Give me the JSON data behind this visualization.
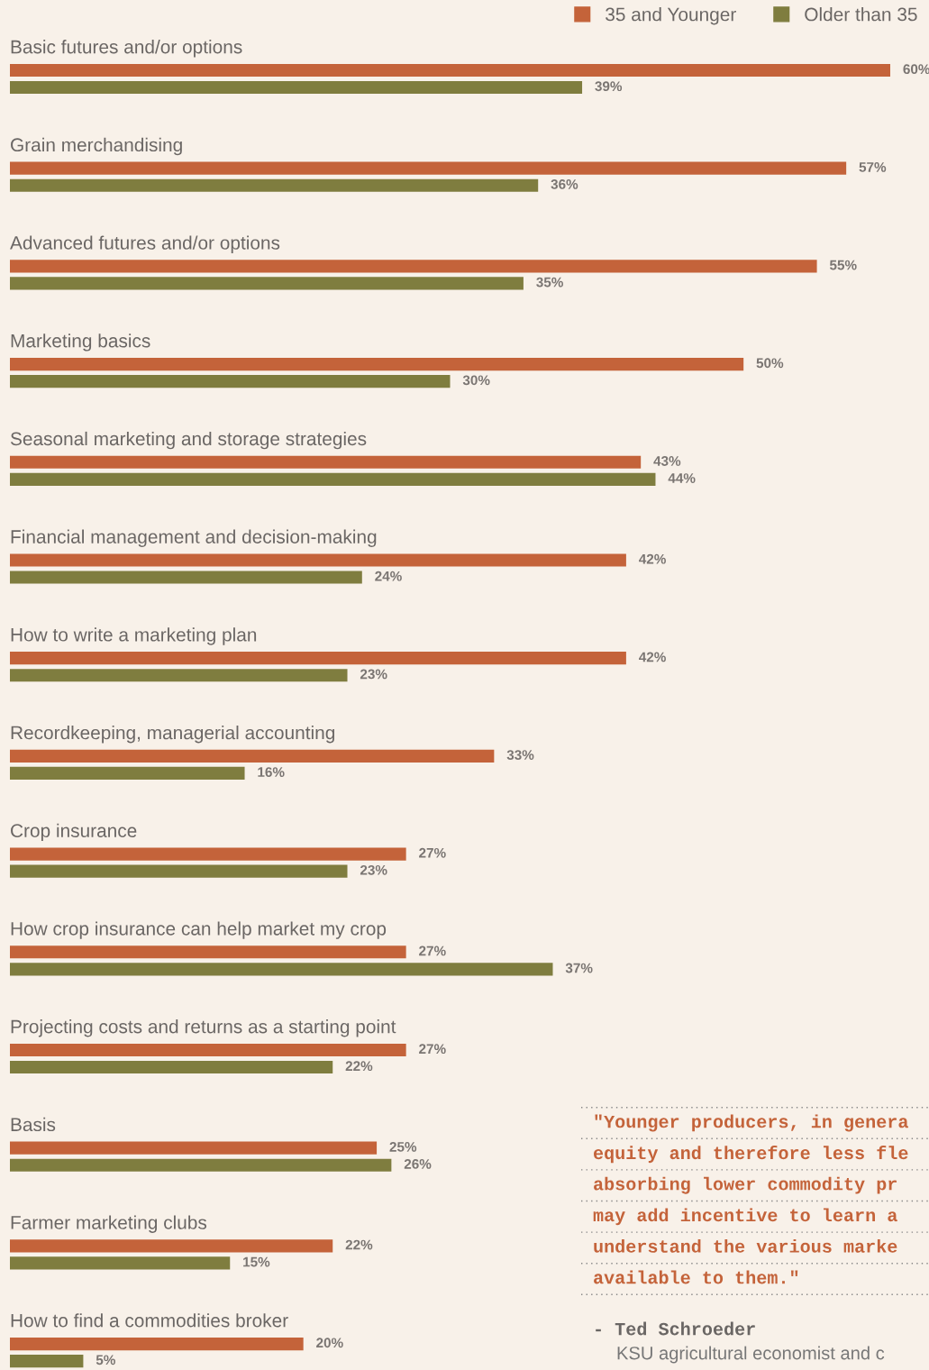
{
  "chart_data": {
    "type": "bar",
    "orientation": "horizontal",
    "legend": "top right",
    "categories": [
      "Basic futures and/or options",
      "Grain merchandising",
      "Advanced futures and/or options",
      "Marketing basics",
      "Seasonal marketing and storage strategies",
      "Financial management and decision-making",
      "How to write a marketing plan",
      "Recordkeeping, managerial accounting",
      "Crop insurance",
      "How crop insurance can help market my crop",
      "Projecting costs and returns as a starting point",
      "Basis",
      "Farmer marketing clubs",
      "How to find a commodities broker"
    ],
    "series": [
      {
        "name": "35 and Younger",
        "color": "#c4633a",
        "values": [
          60,
          57,
          55,
          50,
          43,
          42,
          42,
          33,
          27,
          27,
          27,
          25,
          22,
          20
        ],
        "value_labels": [
          "60%",
          "57%",
          "55%",
          "50%",
          "43%",
          "42%",
          "42%",
          "33%",
          "27%",
          "27%",
          "27%",
          "25%",
          "22%",
          "20%"
        ]
      },
      {
        "name": "Older than 35",
        "color": "#7f7d3f",
        "values": [
          39,
          36,
          35,
          30,
          44,
          24,
          23,
          16,
          23,
          37,
          22,
          26,
          15,
          5
        ],
        "value_labels": [
          "39%",
          "36%",
          "35%",
          "30%",
          "44%",
          "24%",
          "23%",
          "16%",
          "23%",
          "37%",
          "22%",
          "26%",
          "15%",
          "5%"
        ]
      }
    ],
    "annotations": [
      "\"Younger producers, in genera\nequity and therefore less fle\nabsorbing lower commodity pr\nmay add incentive to learn a\nunderstand the various marke\navailable to them.\"",
      "- Ted Schroeder",
      "KSU agricultural economist and c"
    ]
  }
}
